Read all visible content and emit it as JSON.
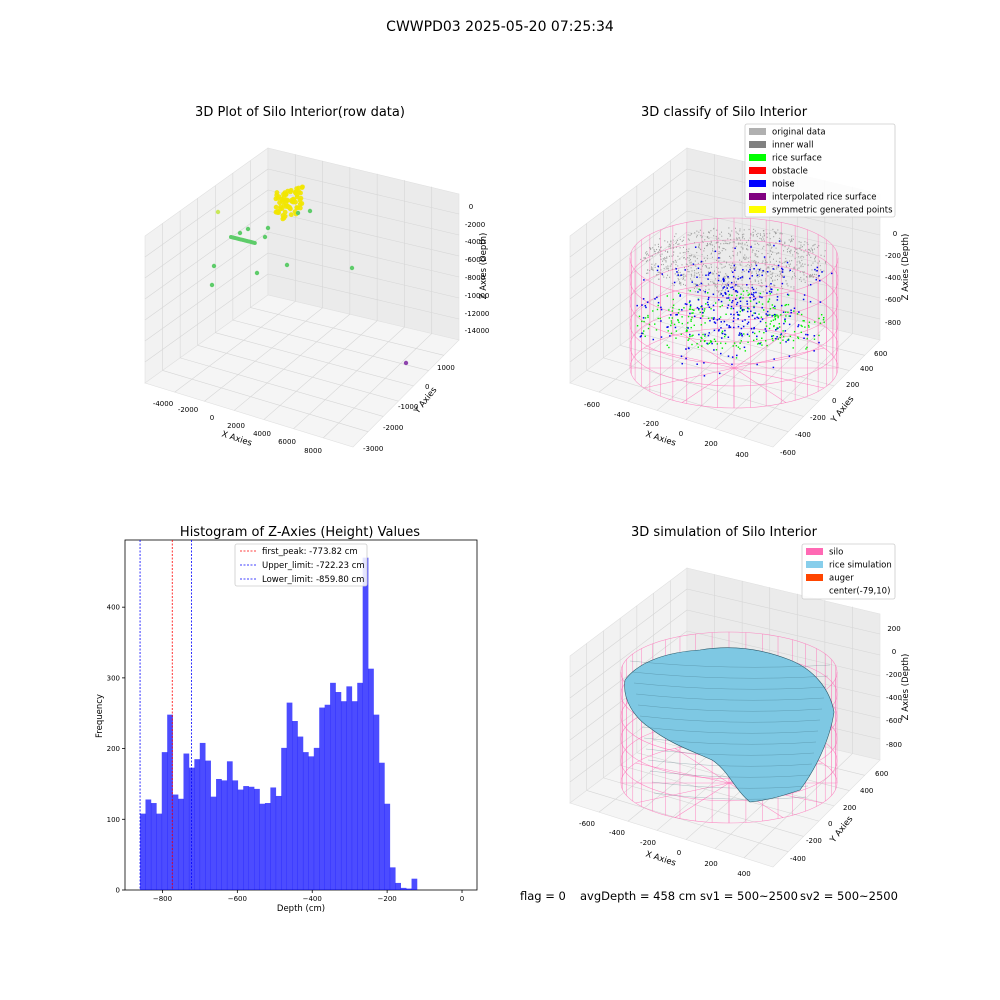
{
  "figure": {
    "suptitle": "CWWPD03 2025-05-20 07:25:34",
    "footer": {
      "flag": "flag = 0",
      "avg_depth": "avgDepth = 458 cm",
      "sv1": "sv1 = 500~2500",
      "sv2": "sv2 = 500~2500"
    }
  },
  "panels": {
    "raw": {
      "title": "3D Plot of Silo Interior(row data)",
      "x_label": "X Axies",
      "y_label": "Y Axies",
      "z_label": "Z Axies (Depth)",
      "x_ticks": [
        "-4000",
        "-2000",
        "0",
        "2000",
        "4000",
        "6000",
        "8000"
      ],
      "y_ticks": [
        "1000",
        "0",
        "-1000",
        "-2000",
        "-3000"
      ],
      "z_ticks": [
        "0",
        "-2000",
        "-4000",
        "-6000",
        "-8000",
        "-10000",
        "-12000",
        "-14000"
      ]
    },
    "classify": {
      "title": "3D classify of Silo Interior",
      "x_label": "X Axies",
      "y_label": "Y Axies",
      "z_label": "Z Axies (Depth)",
      "x_ticks": [
        "-600",
        "-400",
        "-200",
        "0",
        "200",
        "400"
      ],
      "y_ticks": [
        "600",
        "400",
        "200",
        "0",
        "-200",
        "-400",
        "-600"
      ],
      "z_ticks": [
        "0",
        "-200",
        "-400",
        "-600",
        "-800"
      ],
      "legend": [
        {
          "label": "original data",
          "color": "#b0b0b0"
        },
        {
          "label": "inner wall",
          "color": "#808080"
        },
        {
          "label": "rice surface",
          "color": "#00ff00"
        },
        {
          "label": "obstacle",
          "color": "#ff0000"
        },
        {
          "label": "noise",
          "color": "#0000ff"
        },
        {
          "label": "interpolated rice surface",
          "color": "#800080"
        },
        {
          "label": "symmetric generated points",
          "color": "#ffff00"
        }
      ]
    },
    "simulation": {
      "title": "3D simulation of Silo Interior",
      "x_label": "X Axies",
      "y_label": "Y Axies",
      "z_label": "Z Axies (Depth)",
      "x_ticks": [
        "-600",
        "-400",
        "-200",
        "0",
        "200",
        "400"
      ],
      "y_ticks": [
        "600",
        "400",
        "200",
        "0",
        "-200",
        "-400"
      ],
      "z_ticks": [
        "200",
        "0",
        "-200",
        "-400",
        "-600",
        "-800"
      ],
      "legend": [
        {
          "label": "silo",
          "color": "#ff69b4"
        },
        {
          "label": "rice simulation",
          "color": "#87ceeb"
        },
        {
          "label": "auger",
          "color": "#ff4500"
        },
        {
          "label": "center(-79,10)",
          "color": "#ffffff"
        }
      ]
    }
  },
  "chart_data": {
    "type": "bar",
    "title": "Histogram of Z-Axies (Height) Values",
    "xlabel": "Depth (cm)",
    "ylabel": "Frequency",
    "xlim": [
      -900,
      40
    ],
    "ylim": [
      0,
      495
    ],
    "x_ticks": [
      -800,
      -600,
      -400,
      -200,
      0
    ],
    "y_ticks": [
      0,
      100,
      200,
      300,
      400
    ],
    "bar_color": "#0000ff",
    "bin_width": 14.5,
    "bin_start": -859.8,
    "values": [
      108,
      128,
      123,
      108,
      195,
      248,
      135,
      129,
      193,
      173,
      185,
      208,
      183,
      132,
      157,
      155,
      182,
      155,
      142,
      147,
      146,
      143,
      122,
      123,
      145,
      133,
      201,
      265,
      239,
      217,
      195,
      189,
      201,
      258,
      262,
      293,
      280,
      267,
      288,
      267,
      293,
      470,
      313,
      248,
      180,
      122,
      32,
      10,
      3,
      2,
      16
    ],
    "lines": [
      {
        "name": "first_peak: -773.82 cm",
        "x": -773.82,
        "color": "#ff0000"
      },
      {
        "name": "Upper_limit: -722.23 cm",
        "x": -722.23,
        "color": "#0000ff"
      },
      {
        "name": "Lower_limit: -859.80 cm",
        "x": -859.8,
        "color": "#0000ff"
      }
    ],
    "legend_position": "top-center"
  }
}
